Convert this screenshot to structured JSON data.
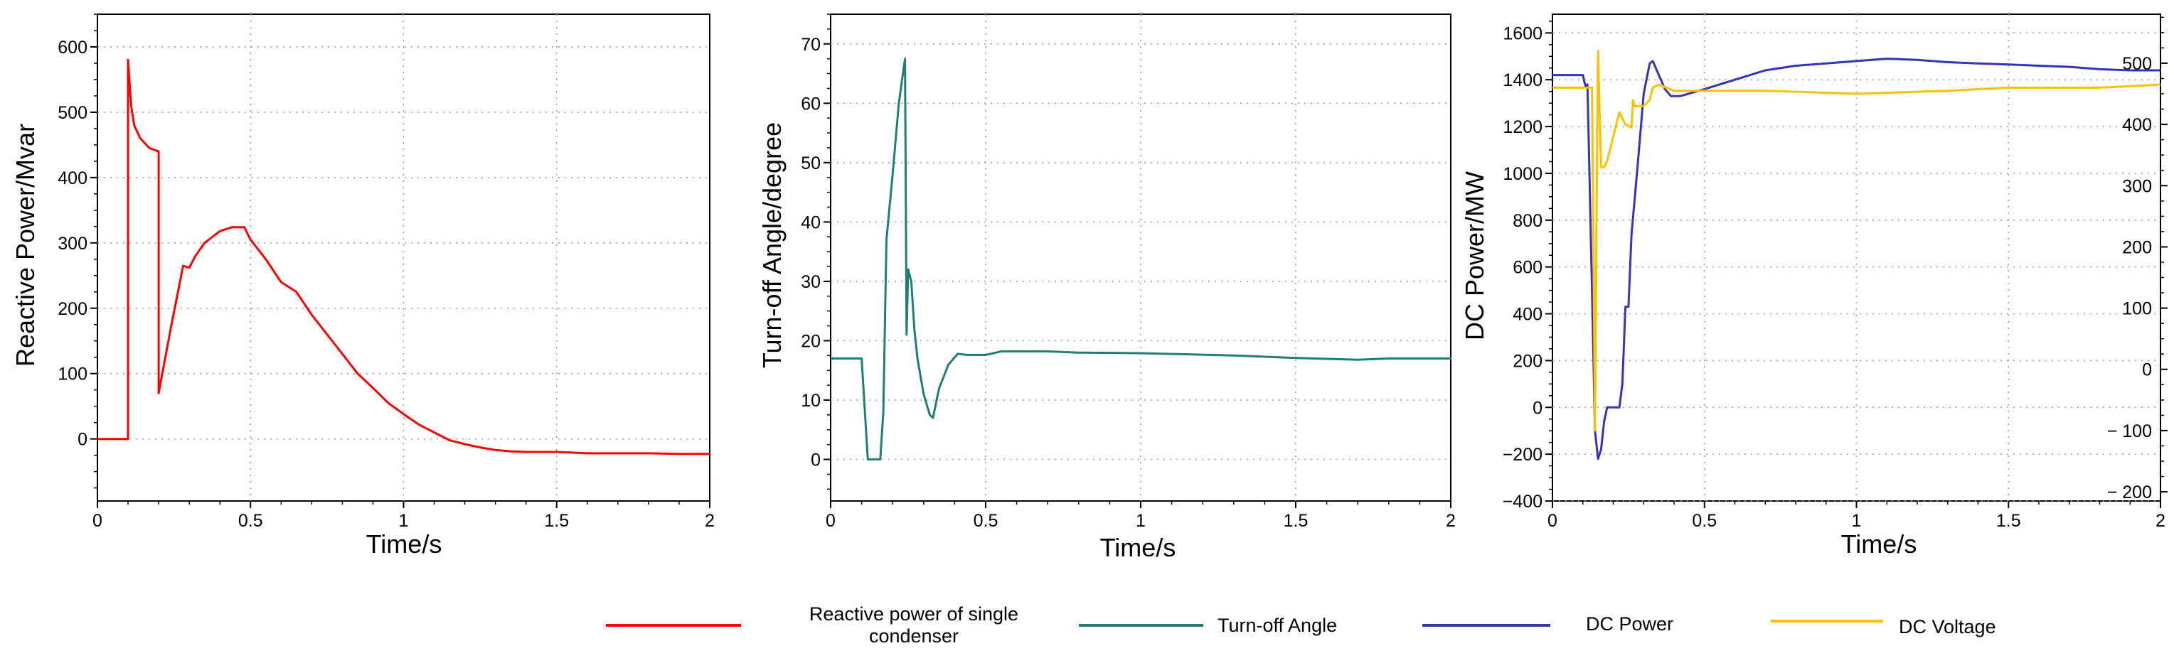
{
  "chart_data": [
    {
      "type": "line",
      "title": "",
      "xlabel": "Time/s",
      "ylabel": "Reactive Power/Mvar",
      "xlim": [
        0,
        2
      ],
      "ylim": [
        -95,
        650
      ],
      "xticks": [
        0,
        0.5,
        1,
        1.5,
        2
      ],
      "xtick_labels": [
        "0",
        "0.5",
        "1",
        "1.5",
        "2"
      ],
      "yticks": [
        0,
        100,
        200,
        300,
        400,
        500,
        600
      ],
      "ytick_labels": [
        "0",
        "100",
        "200",
        "300",
        "400",
        "500",
        "600"
      ],
      "grid": true,
      "series": [
        {
          "name": "Reactive power of single condenser",
          "color": "#ff0000",
          "points": [
            [
              0,
              0
            ],
            [
              0.1,
              0
            ],
            [
              0.1,
              580
            ],
            [
              0.11,
              510
            ],
            [
              0.12,
              480
            ],
            [
              0.14,
              460
            ],
            [
              0.17,
              445
            ],
            [
              0.2,
              440
            ],
            [
              0.2,
              70
            ],
            [
              0.24,
              170
            ],
            [
              0.28,
              265
            ],
            [
              0.3,
              262
            ],
            [
              0.32,
              280
            ],
            [
              0.35,
              300
            ],
            [
              0.4,
              318
            ],
            [
              0.44,
              324
            ],
            [
              0.48,
              324
            ],
            [
              0.5,
              305
            ],
            [
              0.55,
              275
            ],
            [
              0.6,
              240
            ],
            [
              0.65,
              225
            ],
            [
              0.7,
              190
            ],
            [
              0.75,
              160
            ],
            [
              0.8,
              130
            ],
            [
              0.85,
              100
            ],
            [
              0.9,
              78
            ],
            [
              0.95,
              55
            ],
            [
              1.0,
              38
            ],
            [
              1.05,
              22
            ],
            [
              1.1,
              10
            ],
            [
              1.15,
              -2
            ],
            [
              1.2,
              -8
            ],
            [
              1.25,
              -13
            ],
            [
              1.3,
              -17
            ],
            [
              1.35,
              -19
            ],
            [
              1.4,
              -20
            ],
            [
              1.5,
              -20
            ],
            [
              1.6,
              -22
            ],
            [
              1.7,
              -22
            ],
            [
              1.8,
              -22
            ],
            [
              1.9,
              -23
            ],
            [
              2.0,
              -23
            ]
          ]
        }
      ]
    },
    {
      "type": "line",
      "title": "",
      "xlabel": "Time/s",
      "ylabel": "Turn-off Angle/degree",
      "xlim": [
        0,
        2
      ],
      "ylim": [
        -7,
        75
      ],
      "xticks": [
        0,
        0.5,
        1,
        1.5,
        2
      ],
      "xtick_labels": [
        "0",
        "0.5",
        "1",
        "1.5",
        "2"
      ],
      "yticks": [
        0,
        10,
        20,
        30,
        40,
        50,
        60,
        70
      ],
      "ytick_labels": [
        "0",
        "10",
        "20",
        "30",
        "40",
        "50",
        "60",
        "70"
      ],
      "grid": true,
      "series": [
        {
          "name": "Turn-off Angle",
          "color": "#1f7f72",
          "points": [
            [
              0,
              17
            ],
            [
              0.1,
              17
            ],
            [
              0.12,
              0
            ],
            [
              0.16,
              0
            ],
            [
              0.17,
              8
            ],
            [
              0.18,
              37
            ],
            [
              0.2,
              48
            ],
            [
              0.22,
              60
            ],
            [
              0.24,
              67.5
            ],
            [
              0.245,
              21
            ],
            [
              0.25,
              32
            ],
            [
              0.26,
              30
            ],
            [
              0.27,
              22
            ],
            [
              0.28,
              17
            ],
            [
              0.3,
              11
            ],
            [
              0.32,
              7.5
            ],
            [
              0.33,
              7
            ],
            [
              0.35,
              12
            ],
            [
              0.38,
              16
            ],
            [
              0.41,
              17.8
            ],
            [
              0.44,
              17.6
            ],
            [
              0.5,
              17.6
            ],
            [
              0.55,
              18.2
            ],
            [
              0.7,
              18.2
            ],
            [
              0.8,
              18.0
            ],
            [
              1.0,
              17.9
            ],
            [
              1.3,
              17.5
            ],
            [
              1.5,
              17.1
            ],
            [
              1.7,
              16.8
            ],
            [
              1.8,
              17.0
            ],
            [
              2.0,
              17.0
            ]
          ]
        }
      ]
    },
    {
      "type": "line",
      "title": "",
      "xlabel": "Time/s",
      "ylabel": "DC Power/MW",
      "ylabel_right": "",
      "xlim": [
        0,
        2
      ],
      "ylim": [
        -400,
        1680
      ],
      "ylim_right": [
        -215,
        580
      ],
      "xticks": [
        0,
        0.5,
        1,
        1.5,
        2
      ],
      "xtick_labels": [
        "0",
        "0.5",
        "1",
        "1.5",
        "2"
      ],
      "yticks": [
        -400,
        -200,
        0,
        200,
        400,
        600,
        800,
        1000,
        1200,
        1400,
        1600
      ],
      "ytick_labels": [
        "−400",
        "−200",
        "0",
        "200",
        "400",
        "600",
        "800",
        "1000",
        "1200",
        "1400",
        "1600"
      ],
      "yticks_right": [
        -200,
        -100,
        0,
        100,
        200,
        300,
        400,
        500
      ],
      "ytick_labels_right": [
        "− 200",
        "− 100",
        "0",
        "100",
        "200",
        "300",
        "400",
        "500"
      ],
      "grid": true,
      "series": [
        {
          "name": "DC Power",
          "axis": "left",
          "color": "#3333bb",
          "points": [
            [
              0,
              1420
            ],
            [
              0.1,
              1420
            ],
            [
              0.105,
              1390
            ],
            [
              0.11,
              1370
            ],
            [
              0.115,
              1380
            ],
            [
              0.12,
              1100
            ],
            [
              0.13,
              500
            ],
            [
              0.14,
              -100
            ],
            [
              0.15,
              -220
            ],
            [
              0.16,
              -180
            ],
            [
              0.17,
              -60
            ],
            [
              0.18,
              0
            ],
            [
              0.22,
              0
            ],
            [
              0.23,
              100
            ],
            [
              0.24,
              430
            ],
            [
              0.25,
              430
            ],
            [
              0.26,
              740
            ],
            [
              0.28,
              1030
            ],
            [
              0.3,
              1340
            ],
            [
              0.32,
              1470
            ],
            [
              0.33,
              1480
            ],
            [
              0.35,
              1420
            ],
            [
              0.37,
              1360
            ],
            [
              0.39,
              1330
            ],
            [
              0.42,
              1330
            ],
            [
              0.5,
              1360
            ],
            [
              0.6,
              1400
            ],
            [
              0.7,
              1440
            ],
            [
              0.8,
              1460
            ],
            [
              0.9,
              1470
            ],
            [
              1.0,
              1480
            ],
            [
              1.1,
              1490
            ],
            [
              1.2,
              1485
            ],
            [
              1.3,
              1475
            ],
            [
              1.4,
              1470
            ],
            [
              1.5,
              1465
            ],
            [
              1.6,
              1460
            ],
            [
              1.7,
              1455
            ],
            [
              1.8,
              1445
            ],
            [
              1.9,
              1440
            ],
            [
              2.0,
              1440
            ]
          ]
        },
        {
          "name": "DC Voltage",
          "axis": "right",
          "color": "#ffc000",
          "points": [
            [
              0,
              460
            ],
            [
              0.13,
              460
            ],
            [
              0.135,
              200
            ],
            [
              0.14,
              -100
            ],
            [
              0.145,
              250
            ],
            [
              0.15,
              520
            ],
            [
              0.16,
              330
            ],
            [
              0.17,
              330
            ],
            [
              0.18,
              340
            ],
            [
              0.2,
              380
            ],
            [
              0.22,
              420
            ],
            [
              0.24,
              400
            ],
            [
              0.26,
              395
            ],
            [
              0.265,
              440
            ],
            [
              0.27,
              430
            ],
            [
              0.3,
              430
            ],
            [
              0.32,
              440
            ],
            [
              0.33,
              460
            ],
            [
              0.35,
              465
            ],
            [
              0.4,
              455
            ],
            [
              0.5,
              455
            ],
            [
              0.7,
              455
            ],
            [
              1.0,
              450
            ],
            [
              1.3,
              455
            ],
            [
              1.5,
              460
            ],
            [
              1.6,
              460
            ],
            [
              1.8,
              460
            ],
            [
              2.0,
              465
            ]
          ]
        }
      ]
    }
  ],
  "legend": [
    {
      "label": "Reactive power of single condenser",
      "color": "#ff0000"
    },
    {
      "label": "Turn-off Angle",
      "color": "#1f7f72"
    },
    {
      "label": "DC Power",
      "color": "#3333bb"
    },
    {
      "label": "DC Voltage",
      "color": "#ffc000"
    }
  ]
}
